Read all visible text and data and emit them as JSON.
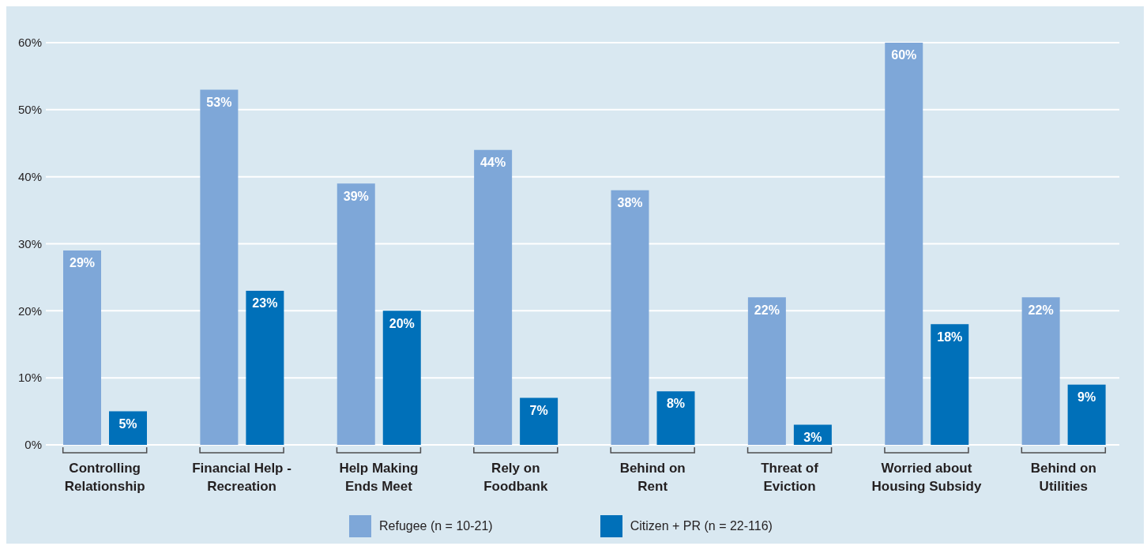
{
  "chart_data": {
    "type": "bar",
    "categories": [
      "Controlling\nRelationship",
      "Financial Help -\nRecreation",
      "Help Making\nEnds Meet",
      "Rely on\nFoodbank",
      "Behind on\nRent",
      "Threat of\nEviction",
      "Worried about\nHousing Subsidy",
      "Behind on\nUtilities"
    ],
    "series": [
      {
        "name": "Refugee (n = 10-21)",
        "color": "#7ea7d8",
        "values": [
          29,
          53,
          39,
          44,
          38,
          22,
          60,
          22
        ],
        "value_labels": [
          "29%",
          "53%",
          "39%",
          "44%",
          "38%",
          "22%",
          "60%",
          "22%"
        ]
      },
      {
        "name": "Citizen + PR (n = 22-116)",
        "color": "#0070b9",
        "values": [
          5,
          23,
          20,
          7,
          8,
          3,
          18,
          9
        ],
        "value_labels": [
          "5%",
          "23%",
          "20%",
          "7%",
          "8%",
          "3%",
          "18%",
          "9%"
        ]
      }
    ],
    "ylim": [
      0,
      60
    ],
    "yticks": [
      {
        "value": 0,
        "label": "0%"
      },
      {
        "value": 10,
        "label": "10%"
      },
      {
        "value": 20,
        "label": "20%"
      },
      {
        "value": 30,
        "label": "30%"
      },
      {
        "value": 40,
        "label": "40%"
      },
      {
        "value": 50,
        "label": "50%"
      },
      {
        "value": 60,
        "label": "60%"
      }
    ],
    "grid": "y",
    "legend": "bottom"
  }
}
